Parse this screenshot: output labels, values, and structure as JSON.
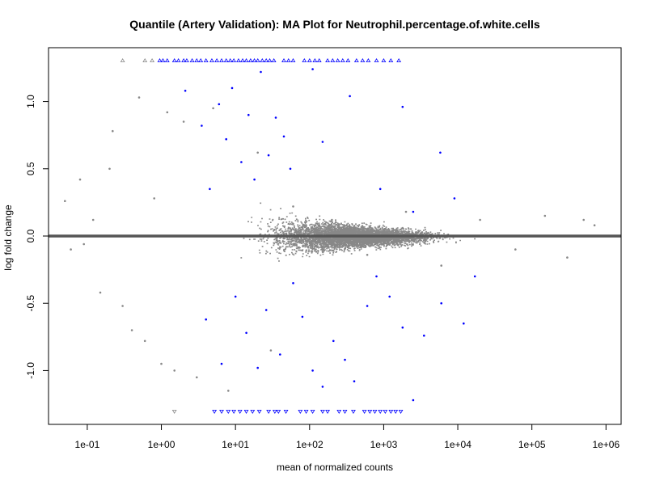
{
  "chart_data": {
    "type": "scatter",
    "title": "Quantile (Artery Validation): MA Plot for Neutrophil.percentage.of.white.cells",
    "xlabel": "mean of normalized counts",
    "ylabel": "log fold change",
    "x_scale": "log10",
    "xlim": [
      0.03,
      1600000
    ],
    "ylim": [
      -1.4,
      1.4
    ],
    "x_ticks": [
      {
        "value": 0.1,
        "label": "1e-01"
      },
      {
        "value": 1,
        "label": "1e+00"
      },
      {
        "value": 10,
        "label": "1e+01"
      },
      {
        "value": 100,
        "label": "1e+02"
      },
      {
        "value": 1000,
        "label": "1e+03"
      },
      {
        "value": 10000,
        "label": "1e+04"
      },
      {
        "value": 100000,
        "label": "1e+05"
      },
      {
        "value": 1000000,
        "label": "1e+06"
      }
    ],
    "y_ticks": [
      {
        "value": -1.0,
        "label": "-1.0"
      },
      {
        "value": -0.5,
        "label": "-0.5"
      },
      {
        "value": 0.0,
        "label": "0.0"
      },
      {
        "value": 0.5,
        "label": "0.5"
      },
      {
        "value": 1.0,
        "label": "1.0"
      }
    ],
    "reference_line": {
      "y": 0,
      "color": "#555555"
    },
    "grid": false,
    "colors": {
      "nonsignificant": "#888888",
      "significant": "#0000ff"
    },
    "series": [
      {
        "approx_point_count": 14000,
        "points": [
          [
            0.05,
            0.26
          ],
          [
            0.06,
            -0.1
          ],
          [
            0.08,
            0.42
          ],
          [
            0.09,
            -0.06
          ],
          [
            0.12,
            0.12
          ],
          [
            0.15,
            -0.42
          ],
          [
            0.2,
            0.5
          ],
          [
            0.22,
            0.78
          ],
          [
            0.3,
            -0.52
          ],
          [
            0.4,
            -0.7
          ],
          [
            0.5,
            1.03
          ],
          [
            0.6,
            -0.78
          ],
          [
            0.8,
            0.28
          ],
          [
            1.0,
            -0.95
          ],
          [
            1.2,
            0.92
          ],
          [
            1.5,
            -1.0
          ],
          [
            2.0,
            0.85
          ],
          [
            3.0,
            -1.05
          ],
          [
            5.0,
            0.95
          ],
          [
            8.0,
            -1.15
          ],
          [
            20,
            0.62
          ],
          [
            30,
            -0.85
          ],
          [
            60,
            0.22
          ],
          [
            200,
            0.12
          ],
          [
            600,
            -0.14
          ],
          [
            2000,
            0.18
          ],
          [
            6000,
            -0.22
          ],
          [
            20000,
            0.12
          ],
          [
            60000,
            -0.1
          ],
          [
            150000,
            0.15
          ],
          [
            300000,
            -0.16
          ],
          [
            500000,
            0.12
          ],
          [
            700000,
            0.08
          ]
        ]
      },
      {
        "color": "#0000ff",
        "points": [
          [
            2.1,
            1.08
          ],
          [
            3.5,
            0.82
          ],
          [
            4.5,
            0.35
          ],
          [
            6.0,
            0.98
          ],
          [
            7.5,
            0.72
          ],
          [
            9.0,
            1.1
          ],
          [
            12,
            0.55
          ],
          [
            15,
            0.9
          ],
          [
            18,
            0.42
          ],
          [
            22,
            1.22
          ],
          [
            28,
            0.6
          ],
          [
            35,
            0.88
          ],
          [
            45,
            0.74
          ],
          [
            55,
            0.5
          ],
          [
            110,
            1.24
          ],
          [
            150,
            0.7
          ],
          [
            350,
            1.04
          ],
          [
            900,
            0.35
          ],
          [
            1800,
            0.96
          ],
          [
            2500,
            0.18
          ],
          [
            5800,
            0.62
          ],
          [
            9000,
            0.28
          ],
          [
            17000,
            -0.3
          ],
          [
            4.0,
            -0.62
          ],
          [
            6.5,
            -0.95
          ],
          [
            10,
            -0.45
          ],
          [
            14,
            -0.72
          ],
          [
            20,
            -0.98
          ],
          [
            26,
            -0.55
          ],
          [
            40,
            -0.88
          ],
          [
            60,
            -0.35
          ],
          [
            80,
            -0.6
          ],
          [
            110,
            -1.0
          ],
          [
            150,
            -1.12
          ],
          [
            210,
            -0.78
          ],
          [
            300,
            -0.92
          ],
          [
            400,
            -1.08
          ],
          [
            600,
            -0.52
          ],
          [
            800,
            -0.3
          ],
          [
            1200,
            -0.45
          ],
          [
            1800,
            -0.68
          ],
          [
            2500,
            -1.22
          ],
          [
            3500,
            -0.74
          ],
          [
            6000,
            -0.5
          ],
          [
            12000,
            -0.65
          ]
        ]
      }
    ],
    "clipped_top": [
      {
        "x": 0.3,
        "color": "#888888"
      },
      {
        "x": 0.6,
        "color": "#888888"
      },
      {
        "x": 0.75,
        "color": "#888888"
      },
      {
        "x": 0.95,
        "color": "#0000ff"
      },
      {
        "x": 1.05,
        "color": "#0000ff"
      },
      {
        "x": 1.2,
        "color": "#0000ff"
      },
      {
        "x": 1.5,
        "color": "#0000ff"
      },
      {
        "x": 1.7,
        "color": "#0000ff"
      },
      {
        "x": 2.0,
        "color": "#0000ff"
      },
      {
        "x": 2.2,
        "color": "#0000ff"
      },
      {
        "x": 2.6,
        "color": "#0000ff"
      },
      {
        "x": 3.0,
        "color": "#0000ff"
      },
      {
        "x": 3.4,
        "color": "#0000ff"
      },
      {
        "x": 4.0,
        "color": "#0000ff"
      },
      {
        "x": 4.8,
        "color": "#0000ff"
      },
      {
        "x": 5.6,
        "color": "#0000ff"
      },
      {
        "x": 6.5,
        "color": "#0000ff"
      },
      {
        "x": 7.5,
        "color": "#0000ff"
      },
      {
        "x": 8.5,
        "color": "#0000ff"
      },
      {
        "x": 9.5,
        "color": "#0000ff"
      },
      {
        "x": 11,
        "color": "#0000ff"
      },
      {
        "x": 12.5,
        "color": "#0000ff"
      },
      {
        "x": 14,
        "color": "#0000ff"
      },
      {
        "x": 16,
        "color": "#0000ff"
      },
      {
        "x": 18,
        "color": "#0000ff"
      },
      {
        "x": 20,
        "color": "#0000ff"
      },
      {
        "x": 23,
        "color": "#0000ff"
      },
      {
        "x": 26,
        "color": "#0000ff"
      },
      {
        "x": 29,
        "color": "#0000ff"
      },
      {
        "x": 33,
        "color": "#0000ff"
      },
      {
        "x": 45,
        "color": "#0000ff"
      },
      {
        "x": 52,
        "color": "#0000ff"
      },
      {
        "x": 60,
        "color": "#0000ff"
      },
      {
        "x": 85,
        "color": "#0000ff"
      },
      {
        "x": 100,
        "color": "#0000ff"
      },
      {
        "x": 118,
        "color": "#0000ff"
      },
      {
        "x": 135,
        "color": "#0000ff"
      },
      {
        "x": 175,
        "color": "#0000ff"
      },
      {
        "x": 205,
        "color": "#0000ff"
      },
      {
        "x": 240,
        "color": "#0000ff"
      },
      {
        "x": 280,
        "color": "#0000ff"
      },
      {
        "x": 330,
        "color": "#0000ff"
      },
      {
        "x": 430,
        "color": "#0000ff"
      },
      {
        "x": 520,
        "color": "#0000ff"
      },
      {
        "x": 620,
        "color": "#0000ff"
      },
      {
        "x": 800,
        "color": "#0000ff"
      },
      {
        "x": 1000,
        "color": "#0000ff"
      },
      {
        "x": 1250,
        "color": "#0000ff"
      },
      {
        "x": 1600,
        "color": "#0000ff"
      }
    ],
    "clipped_bottom": [
      {
        "x": 1.5,
        "color": "#888888"
      },
      {
        "x": 5.2,
        "color": "#0000ff"
      },
      {
        "x": 6.5,
        "color": "#0000ff"
      },
      {
        "x": 8.0,
        "color": "#0000ff"
      },
      {
        "x": 9.5,
        "color": "#0000ff"
      },
      {
        "x": 11.5,
        "color": "#0000ff"
      },
      {
        "x": 14,
        "color": "#0000ff"
      },
      {
        "x": 17,
        "color": "#0000ff"
      },
      {
        "x": 21,
        "color": "#0000ff"
      },
      {
        "x": 28,
        "color": "#0000ff"
      },
      {
        "x": 34,
        "color": "#0000ff"
      },
      {
        "x": 38,
        "color": "#0000ff"
      },
      {
        "x": 48,
        "color": "#0000ff"
      },
      {
        "x": 75,
        "color": "#0000ff"
      },
      {
        "x": 90,
        "color": "#0000ff"
      },
      {
        "x": 110,
        "color": "#0000ff"
      },
      {
        "x": 150,
        "color": "#0000ff"
      },
      {
        "x": 175,
        "color": "#0000ff"
      },
      {
        "x": 250,
        "color": "#0000ff"
      },
      {
        "x": 300,
        "color": "#0000ff"
      },
      {
        "x": 390,
        "color": "#0000ff"
      },
      {
        "x": 550,
        "color": "#0000ff"
      },
      {
        "x": 650,
        "color": "#0000ff"
      },
      {
        "x": 760,
        "color": "#0000ff"
      },
      {
        "x": 900,
        "color": "#0000ff"
      },
      {
        "x": 1050,
        "color": "#0000ff"
      },
      {
        "x": 1250,
        "color": "#0000ff"
      },
      {
        "x": 1450,
        "color": "#0000ff"
      },
      {
        "x": 1700,
        "color": "#0000ff"
      }
    ]
  }
}
